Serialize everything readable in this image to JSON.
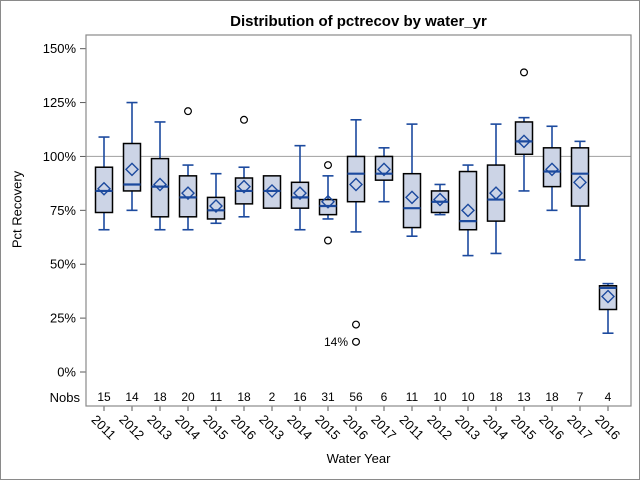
{
  "window": {
    "background": "#ffffff",
    "border_color": "#8a8a8a"
  },
  "chart_data": {
    "type": "boxplot",
    "title": "Distribution of pctrecov by water_yr",
    "xlabel": "Water Year",
    "ylabel": "Pct Recovery",
    "nobs_header": "Nobs",
    "legend": "none",
    "grid": "off",
    "reference_line_value": 100,
    "y_axis": {
      "tick_values": [
        0,
        25,
        50,
        75,
        100,
        125,
        150
      ],
      "tick_labels": [
        "0%",
        "25%",
        "50%",
        "75%",
        "100%",
        "125%",
        "150%"
      ],
      "ylim": [
        -15,
        157
      ]
    },
    "annotations": [
      {
        "text": "14%",
        "group_index": 9,
        "value": 14
      }
    ],
    "groups": [
      {
        "year": "2011",
        "nobs": "15",
        "low": 66,
        "q1": 74,
        "median": 84,
        "q3": 95,
        "high": 109,
        "mean": 85,
        "outliers": []
      },
      {
        "year": "2012",
        "nobs": "14",
        "low": 75,
        "q1": 84,
        "median": 87,
        "q3": 106,
        "high": 125,
        "mean": 94,
        "outliers": []
      },
      {
        "year": "2013",
        "nobs": "18",
        "low": 66,
        "q1": 72,
        "median": 86,
        "q3": 99,
        "high": 116,
        "mean": 87,
        "outliers": []
      },
      {
        "year": "2014",
        "nobs": "20",
        "low": 66,
        "q1": 72,
        "median": 81,
        "q3": 91,
        "high": 96,
        "mean": 83,
        "outliers": [
          121
        ]
      },
      {
        "year": "2015",
        "nobs": "11",
        "low": 69,
        "q1": 71,
        "median": 75,
        "q3": 81,
        "high": 92,
        "mean": 77,
        "outliers": []
      },
      {
        "year": "2016",
        "nobs": "18",
        "low": 72,
        "q1": 78,
        "median": 84,
        "q3": 90,
        "high": 95,
        "mean": 86,
        "outliers": [
          117
        ]
      },
      {
        "year": "2013",
        "nobs": "2",
        "low": 76,
        "q1": 76,
        "median": 84,
        "q3": 91,
        "high": 91,
        "mean": 84,
        "outliers": []
      },
      {
        "year": "2014",
        "nobs": "16",
        "low": 66,
        "q1": 76,
        "median": 81,
        "q3": 88,
        "high": 105,
        "mean": 83,
        "outliers": []
      },
      {
        "year": "2015",
        "nobs": "31",
        "low": 71,
        "q1": 73,
        "median": 77,
        "q3": 80,
        "high": 91,
        "mean": 79,
        "outliers": [
          96,
          61
        ]
      },
      {
        "year": "2016",
        "nobs": "56",
        "low": 65,
        "q1": 79,
        "median": 92,
        "q3": 100,
        "high": 117,
        "mean": 87,
        "outliers": [
          22,
          14
        ]
      },
      {
        "year": "2017",
        "nobs": "6",
        "low": 79,
        "q1": 89,
        "median": 92,
        "q3": 100,
        "high": 104,
        "mean": 94,
        "outliers": []
      },
      {
        "year": "2011",
        "nobs": "11",
        "low": 63,
        "q1": 67,
        "median": 76,
        "q3": 92,
        "high": 115,
        "mean": 81,
        "outliers": []
      },
      {
        "year": "2012",
        "nobs": "10",
        "low": 73,
        "q1": 74,
        "median": 79,
        "q3": 84,
        "high": 87,
        "mean": 80,
        "outliers": []
      },
      {
        "year": "2013",
        "nobs": "10",
        "low": 54,
        "q1": 66,
        "median": 70,
        "q3": 93,
        "high": 96,
        "mean": 75,
        "outliers": []
      },
      {
        "year": "2014",
        "nobs": "18",
        "low": 55,
        "q1": 70,
        "median": 80,
        "q3": 96,
        "high": 115,
        "mean": 83,
        "outliers": []
      },
      {
        "year": "2015",
        "nobs": "13",
        "low": 84,
        "q1": 101,
        "median": 107,
        "q3": 116,
        "high": 118,
        "mean": 107,
        "outliers": [
          139
        ]
      },
      {
        "year": "2016",
        "nobs": "18",
        "low": 75,
        "q1": 86,
        "median": 93,
        "q3": 104,
        "high": 114,
        "mean": 94,
        "outliers": []
      },
      {
        "year": "2017",
        "nobs": "7",
        "low": 52,
        "q1": 77,
        "median": 92,
        "q3": 104,
        "high": 107,
        "mean": 88,
        "outliers": []
      },
      {
        "year": "2016",
        "nobs": "4",
        "low": 18,
        "q1": 29,
        "median": 39,
        "q3": 40,
        "high": 41,
        "mean": 35,
        "outliers": []
      }
    ],
    "colors": {
      "box_fill": "#ccd4e6",
      "box_border": "#000000",
      "whisker": "#1c4a9e",
      "median": "#1c4a9e",
      "mean_marker": "#1c4a9e",
      "outlier_stroke": "#000000",
      "reference_line": "#ababab",
      "frame": "#8a8a8a",
      "tick": "#5a5a5a",
      "text": "#000000"
    }
  }
}
